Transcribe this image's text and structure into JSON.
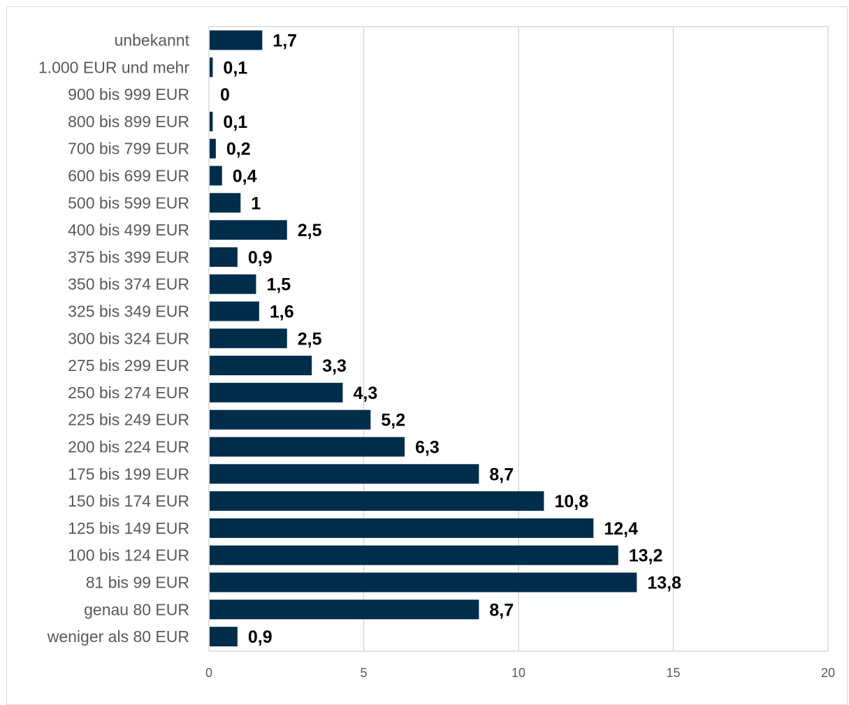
{
  "chart_data": {
    "type": "bar",
    "orientation": "horizontal",
    "categories": [
      "unbekannt",
      "1.000 EUR und mehr",
      "900 bis 999 EUR",
      "800 bis 899 EUR",
      "700 bis 799 EUR",
      "600 bis 699 EUR",
      "500 bis 599 EUR",
      "400 bis 499 EUR",
      "375 bis 399 EUR",
      "350 bis 374 EUR",
      "325 bis 349 EUR",
      "300 bis 324 EUR",
      "275 bis 299 EUR",
      "250 bis 274 EUR",
      "225 bis 249 EUR",
      "200 bis 224 EUR",
      "175 bis 199 EUR",
      "150 bis 174 EUR",
      "125 bis 149 EUR",
      "100 bis 124 EUR",
      "81 bis 99 EUR",
      "genau 80 EUR",
      "weniger als 80 EUR"
    ],
    "values": [
      1.7,
      0.1,
      0,
      0.1,
      0.2,
      0.4,
      1,
      2.5,
      0.9,
      1.5,
      1.6,
      2.5,
      3.3,
      4.3,
      5.2,
      6.3,
      8.7,
      10.8,
      12.4,
      13.2,
      13.8,
      8.7,
      0.9
    ],
    "data_labels": [
      "1,7",
      "0,1",
      "0",
      "0,1",
      "0,2",
      "0,4",
      "1",
      "2,5",
      "0,9",
      "1,5",
      "1,6",
      "2,5",
      "3,3",
      "4,3",
      "5,2",
      "6,3",
      "8,7",
      "10,8",
      "12,4",
      "13,2",
      "13,8",
      "8,7",
      "0,9"
    ],
    "x_ticks": [
      0,
      5,
      10,
      15,
      20
    ],
    "x_tick_labels": [
      "0",
      "5",
      "10",
      "15",
      "20"
    ],
    "xlim": [
      0,
      20
    ],
    "grid": true,
    "legend": "none",
    "bar_color": "#002d4a",
    "grid_color": "#d9d9d9"
  }
}
